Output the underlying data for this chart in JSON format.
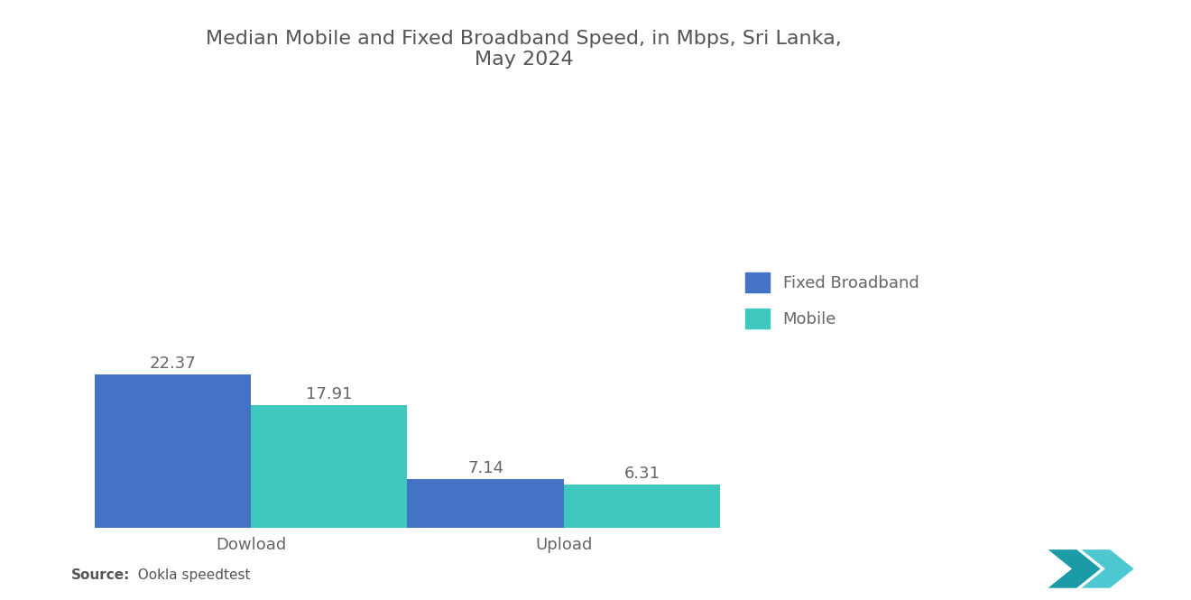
{
  "title": "Median Mobile and Fixed Broadband Speed, in Mbps, Sri Lanka,\nMay 2024",
  "categories": [
    "Dowload",
    "Upload"
  ],
  "fixed_broadband": [
    22.37,
    7.14
  ],
  "mobile": [
    17.91,
    6.31
  ],
  "fixed_color": "#4472C4",
  "mobile_color": "#3EC8C0",
  "bar_width": 0.18,
  "title_fontsize": 16,
  "label_fontsize": 13,
  "tick_fontsize": 13,
  "value_fontsize": 13,
  "legend_labels": [
    "Fixed Broadband",
    "Mobile"
  ],
  "source_label_bold": "Source:",
  "source_text": "  Ookla speedtest",
  "background_color": "#FFFFFF",
  "ylim": [
    0,
    55
  ],
  "group_centers": [
    0.22,
    0.58
  ],
  "xlim": [
    0.0,
    1.0
  ]
}
